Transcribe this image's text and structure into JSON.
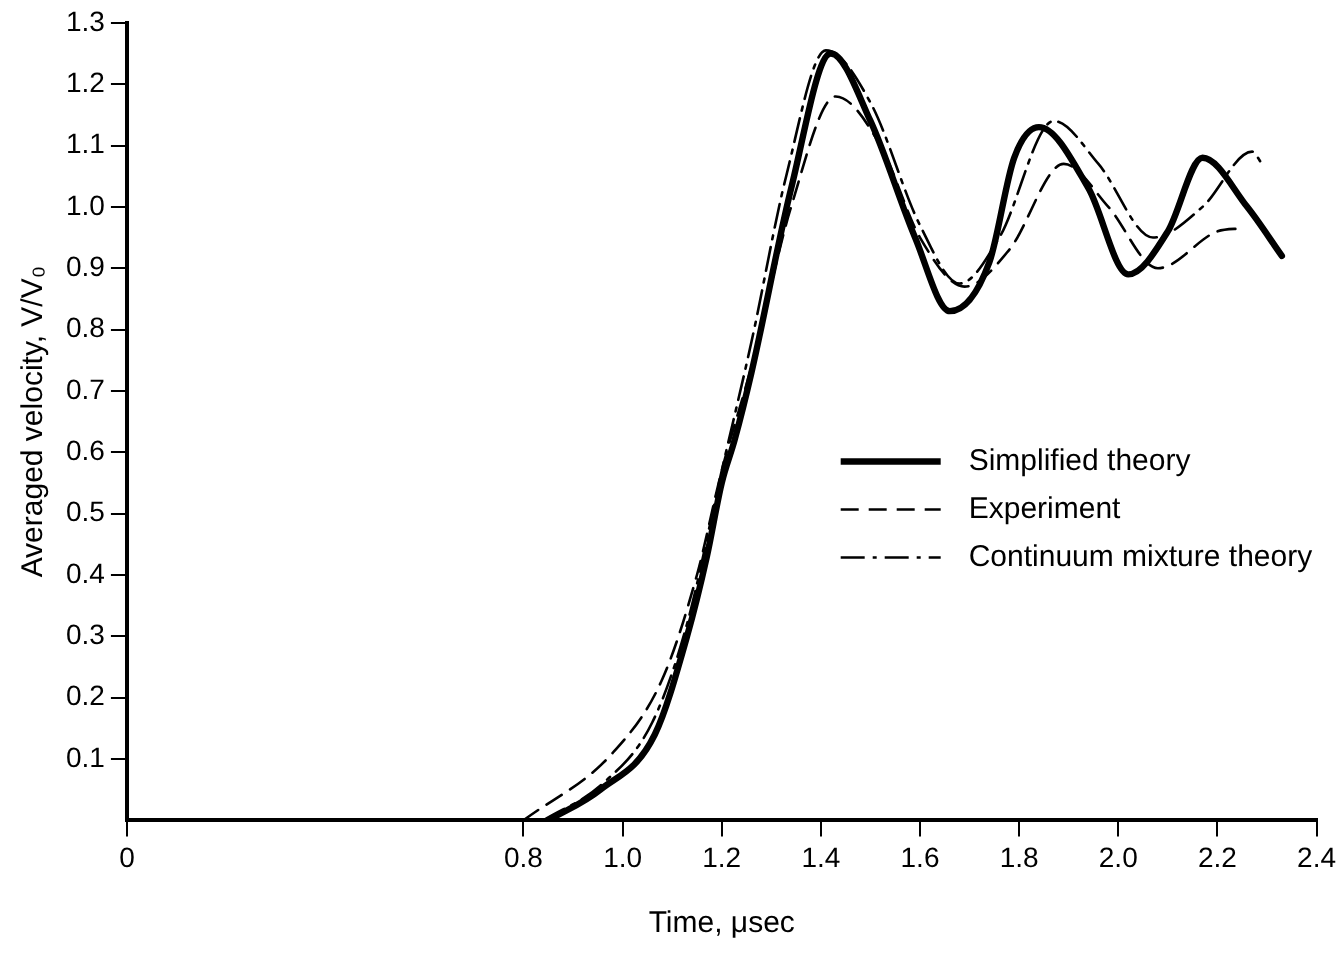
{
  "chart_data": {
    "type": "line",
    "xlabel": "Time, μsec",
    "ylabel": "Averaged velocity, V/V₀",
    "xlim": [
      0,
      2.4
    ],
    "ylim": [
      0,
      1.3
    ],
    "xticks": [
      0,
      0.8,
      {
        "value": 1,
        "label": "1.0"
      },
      1.2,
      1.4,
      1.6,
      1.8,
      {
        "value": 2,
        "label": "2.0"
      },
      2.2,
      2.4
    ],
    "yticks": [
      0.1,
      0.2,
      0.3,
      0.4,
      0.5,
      0.6,
      0.7,
      0.8,
      0.9,
      {
        "value": 1,
        "label": "1.0"
      },
      1.1,
      1.2,
      1.3
    ],
    "grid": false,
    "legend": "right",
    "marker": "none",
    "series": [
      {
        "name": "Simplified theory",
        "color": "#000000",
        "line_style": "solid",
        "x": [
          0.85,
          0.955,
          1.065,
          1.13,
          1.17,
          1.2,
          1.226,
          1.26,
          1.34,
          1.42,
          1.5,
          1.59,
          1.66,
          1.74,
          1.79,
          1.84,
          1.94,
          2.02,
          2.1,
          2.17,
          2.26,
          2.33
        ],
        "values": [
          0,
          0.05,
          0.14,
          0.3,
          0.43,
          0.55,
          0.62,
          0.73,
          1.03,
          1.25,
          1.14,
          0.95,
          0.83,
          0.91,
          1.08,
          1.13,
          1.03,
          0.89,
          0.96,
          1.08,
          1.0,
          0.92
        ]
      },
      {
        "name": "Experiment",
        "color": "#000000",
        "line_style": "dashed",
        "x": [
          0.8,
          0.98,
          1.08,
          1.15,
          1.2,
          1.26,
          1.34,
          1.43,
          1.52,
          1.6,
          1.69,
          1.78,
          1.89,
          1.98,
          2.08,
          2.2,
          2.25
        ],
        "values": [
          0,
          0.11,
          0.23,
          0.4,
          0.57,
          0.74,
          1.0,
          1.18,
          1.1,
          0.95,
          0.87,
          0.93,
          1.07,
          1.0,
          0.9,
          0.96,
          0.965
        ]
      },
      {
        "name": "Continuum mixture theory",
        "color": "#000000",
        "line_style": "dashdot",
        "x": [
          0.84,
          0.96,
          1.06,
          1.13,
          1.2,
          1.26,
          1.33,
          1.41,
          1.5,
          1.6,
          1.68,
          1.76,
          1.87,
          1.96,
          2.07,
          2.17,
          2.27,
          2.29
        ],
        "values": [
          0,
          0.06,
          0.16,
          0.32,
          0.57,
          0.78,
          1.05,
          1.255,
          1.17,
          0.97,
          0.875,
          0.95,
          1.14,
          1.07,
          0.95,
          1.0,
          1.09,
          1.07
        ]
      }
    ]
  }
}
